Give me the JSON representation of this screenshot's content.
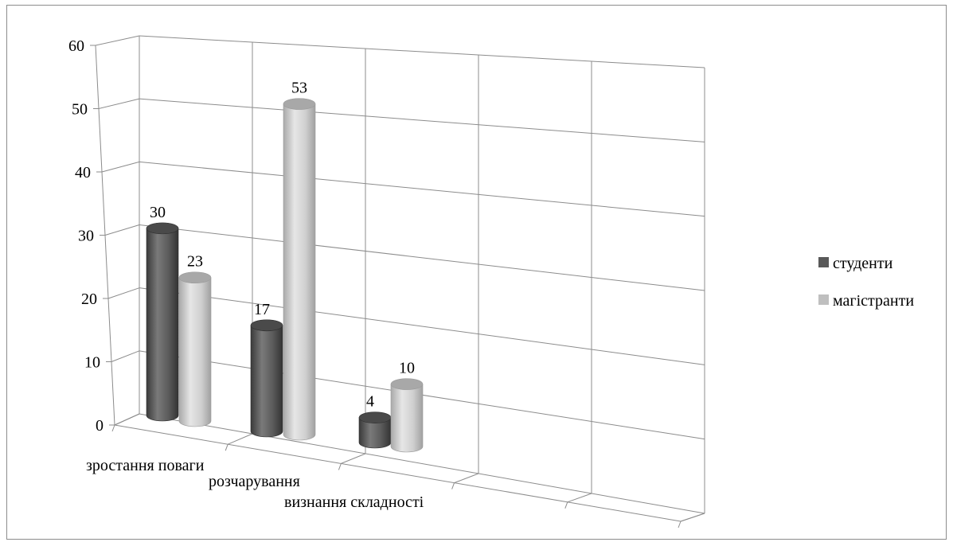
{
  "chart_data": {
    "type": "bar",
    "title": "",
    "xlabel": "",
    "ylabel": "",
    "ylim": [
      0,
      60
    ],
    "y_ticks": [
      "0",
      "10",
      "20",
      "30",
      "40",
      "50",
      "60"
    ],
    "categories": [
      "зростання поваги",
      "розчарування",
      "визнання складності"
    ],
    "series": [
      {
        "name": "студенти",
        "values": [
          30,
          17,
          4
        ],
        "color": "#595959"
      },
      {
        "name": "магістранти",
        "values": [
          23,
          53,
          10
        ],
        "color": "#bfbfbf"
      }
    ],
    "grid": true,
    "legend": "right",
    "perspective": "3d-cylinder"
  }
}
